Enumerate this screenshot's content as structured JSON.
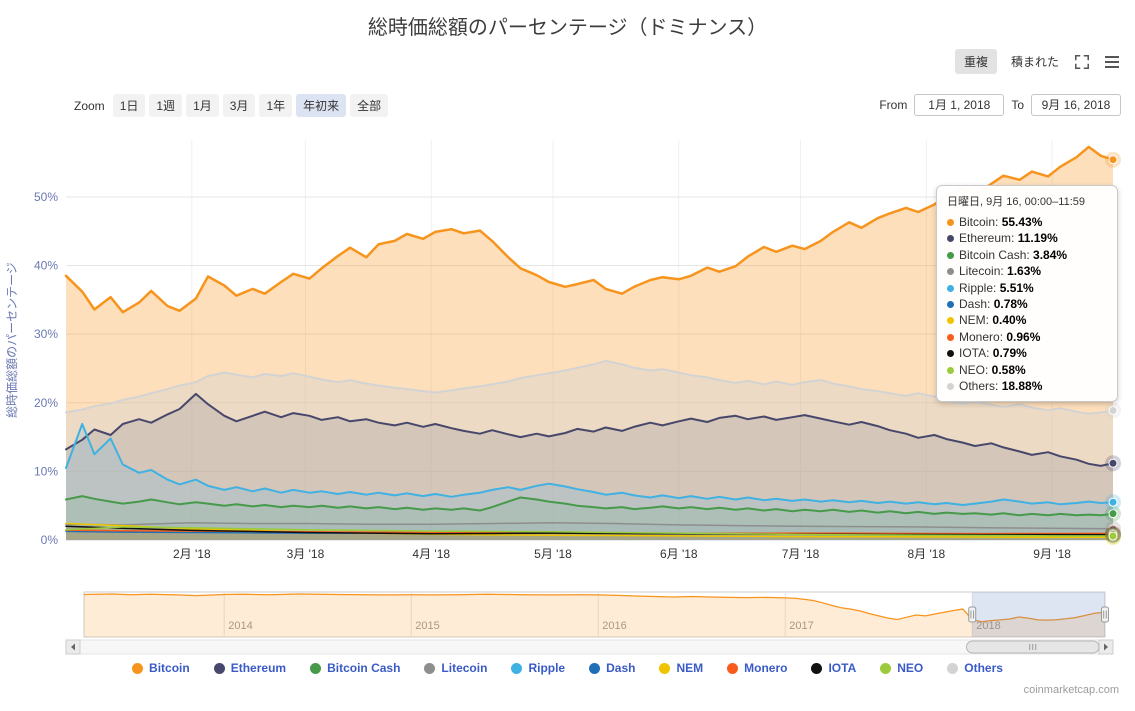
{
  "title": "総時価総額のパーセンテージ（ドミナンス）",
  "y_axis_title": "総時価総額のパーセンテージ",
  "footer": "coinmarketcap.com",
  "view_controls": {
    "overlap": "重複",
    "stacked": "積まれた"
  },
  "zoom": {
    "label": "Zoom",
    "buttons": [
      {
        "label": "1日",
        "selected": false
      },
      {
        "label": "1週",
        "selected": false
      },
      {
        "label": "1月",
        "selected": false
      },
      {
        "label": "3月",
        "selected": false
      },
      {
        "label": "1年",
        "selected": false
      },
      {
        "label": "年初来",
        "selected": true
      },
      {
        "label": "全部",
        "selected": false
      }
    ]
  },
  "range": {
    "from_label": "From",
    "from_value": "1月 1, 2018",
    "to_label": "To",
    "to_value": "9月 16, 2018"
  },
  "tooltip": {
    "title": "日曜日, 9月 16, 00:00–11:59",
    "items": [
      {
        "name": "Bitcoin",
        "value": "55.43%",
        "color": "#f7941d"
      },
      {
        "name": "Ethereum",
        "value": "11.19%",
        "color": "#47476b"
      },
      {
        "name": "Bitcoin Cash",
        "value": "3.84%",
        "color": "#469a4a"
      },
      {
        "name": "Litecoin",
        "value": "1.63%",
        "color": "#8e8e8e"
      },
      {
        "name": "Ripple",
        "value": "5.51%",
        "color": "#3fb1e3"
      },
      {
        "name": "Dash",
        "value": "0.78%",
        "color": "#1f6fb7"
      },
      {
        "name": "NEM",
        "value": "0.40%",
        "color": "#eec500"
      },
      {
        "name": "Monero",
        "value": "0.96%",
        "color": "#f75c1c"
      },
      {
        "name": "IOTA",
        "value": "0.79%",
        "color": "#111111"
      },
      {
        "name": "NEO",
        "value": "0.58%",
        "color": "#9bcb3c"
      },
      {
        "name": "Others",
        "value": "18.88%",
        "color": "#d3d3d3"
      }
    ]
  },
  "legend": {
    "items": [
      {
        "label": "Bitcoin",
        "color": "#f7941d"
      },
      {
        "label": "Ethereum",
        "color": "#47476b"
      },
      {
        "label": "Bitcoin Cash",
        "color": "#469a4a"
      },
      {
        "label": "Litecoin",
        "color": "#8e8e8e"
      },
      {
        "label": "Ripple",
        "color": "#3fb1e3"
      },
      {
        "label": "Dash",
        "color": "#1f6fb7"
      },
      {
        "label": "NEM",
        "color": "#eec500"
      },
      {
        "label": "Monero",
        "color": "#f75c1c"
      },
      {
        "label": "IOTA",
        "color": "#111111"
      },
      {
        "label": "NEO",
        "color": "#9bcb3c"
      },
      {
        "label": "Others",
        "color": "#d3d3d3"
      }
    ]
  },
  "chart_data": {
    "type": "area",
    "mode": "overlap",
    "title": "総時価総額のパーセンテージ（ドミナンス）",
    "ylabel": "総時価総額のパーセンテージ",
    "y_ticks": [
      0,
      10,
      20,
      30,
      40,
      50
    ],
    "ylim": [
      0,
      58.3
    ],
    "xlim_days": [
      0,
      258
    ],
    "x_ticks": [
      {
        "day": 31,
        "label": "2月 '18"
      },
      {
        "day": 59,
        "label": "3月 '18"
      },
      {
        "day": 90,
        "label": "4月 '18"
      },
      {
        "day": 120,
        "label": "5月 '18"
      },
      {
        "day": 151,
        "label": "6月 '18"
      },
      {
        "day": 181,
        "label": "7月 '18"
      },
      {
        "day": 212,
        "label": "8月 '18"
      },
      {
        "day": 243,
        "label": "9月 '18"
      }
    ],
    "x_main": [
      0,
      4,
      7,
      11,
      14,
      18,
      21,
      25,
      28,
      32,
      35,
      39,
      42,
      46,
      49,
      53,
      56,
      60,
      63,
      67,
      70,
      74,
      77,
      81,
      84,
      88,
      91,
      95,
      98,
      102,
      105,
      109,
      112,
      116,
      119,
      123,
      126,
      130,
      133,
      137,
      140,
      144,
      147,
      151,
      154,
      158,
      161,
      165,
      168,
      172,
      175,
      179,
      182,
      186,
      189,
      193,
      196,
      200,
      203,
      207,
      210,
      214,
      217,
      221,
      224,
      228,
      231,
      235,
      238,
      242,
      245,
      249,
      252,
      255,
      258
    ],
    "x_small": [
      0,
      14,
      31,
      45,
      59,
      74,
      90,
      105,
      120,
      135,
      151,
      166,
      181,
      196,
      212,
      227,
      243,
      258
    ],
    "series": [
      {
        "name": "Bitcoin",
        "color": "#f7941d",
        "grid": "main",
        "line_width": 2.5,
        "fill_opacity": 0.3,
        "y": [
          38.5,
          36.2,
          33.6,
          35.4,
          33.2,
          34.6,
          36.3,
          34.1,
          33.4,
          35.2,
          38.4,
          37.1,
          35.6,
          36.6,
          35.9,
          37.6,
          38.8,
          38.1,
          39.6,
          41.4,
          42.6,
          41.2,
          43.1,
          43.6,
          44.6,
          43.9,
          44.9,
          45.3,
          44.7,
          45.1,
          43.6,
          41.2,
          39.6,
          38.6,
          37.6,
          36.9,
          37.3,
          37.9,
          36.6,
          35.9,
          36.9,
          37.9,
          38.3,
          38.0,
          38.5,
          39.7,
          39.1,
          39.9,
          41.3,
          42.7,
          42.0,
          42.9,
          42.4,
          43.6,
          44.9,
          46.3,
          45.5,
          46.9,
          47.6,
          48.4,
          47.8,
          48.9,
          50.3,
          51.2,
          50.4,
          51.9,
          53.1,
          52.5,
          53.7,
          53.0,
          54.4,
          55.8,
          57.3,
          56.0,
          55.43
        ]
      },
      {
        "name": "Ethereum",
        "color": "#47476b",
        "grid": "main",
        "line_width": 2,
        "fill_opacity": 0.22,
        "y": [
          13.2,
          14.6,
          16.1,
          15.3,
          16.9,
          17.6,
          17.1,
          18.3,
          19.1,
          21.3,
          19.8,
          18.1,
          17.3,
          18.1,
          18.7,
          17.9,
          18.5,
          18.1,
          17.5,
          17.9,
          17.3,
          17.6,
          17.1,
          16.7,
          17.1,
          16.5,
          16.9,
          16.3,
          15.9,
          15.5,
          16.0,
          15.4,
          15.0,
          15.5,
          15.1,
          15.6,
          16.2,
          15.8,
          16.4,
          15.9,
          16.5,
          17.1,
          16.7,
          17.3,
          17.7,
          17.2,
          17.8,
          18.1,
          17.6,
          18.0,
          17.5,
          17.9,
          18.2,
          17.7,
          17.3,
          16.8,
          17.2,
          16.6,
          16.0,
          15.5,
          14.9,
          15.3,
          14.7,
          14.2,
          13.7,
          14.1,
          13.5,
          12.9,
          12.4,
          12.8,
          12.2,
          11.7,
          11.1,
          10.8,
          11.19
        ]
      },
      {
        "name": "Bitcoin Cash",
        "color": "#469a4a",
        "grid": "main",
        "line_width": 2,
        "fill_opacity": 0.25,
        "y": [
          5.9,
          6.4,
          6.0,
          5.6,
          5.3,
          5.6,
          5.9,
          5.5,
          5.2,
          5.5,
          5.3,
          5.0,
          5.2,
          4.9,
          5.1,
          4.8,
          5.0,
          4.8,
          5.0,
          4.7,
          4.9,
          4.6,
          4.8,
          4.5,
          4.7,
          4.4,
          4.6,
          4.4,
          4.6,
          4.3,
          4.8,
          5.6,
          6.2,
          5.9,
          5.6,
          5.3,
          5.0,
          4.8,
          4.6,
          4.8,
          4.5,
          4.7,
          4.9,
          4.6,
          4.8,
          4.5,
          4.7,
          4.4,
          4.6,
          4.3,
          4.5,
          4.2,
          4.4,
          4.2,
          4.4,
          4.1,
          4.3,
          4.0,
          4.2,
          3.9,
          4.1,
          3.8,
          4.0,
          3.8,
          3.9,
          3.7,
          3.9,
          3.6,
          3.8,
          3.6,
          3.8,
          3.6,
          3.7,
          3.6,
          3.84
        ]
      },
      {
        "name": "Litecoin",
        "color": "#8e8e8e",
        "grid": "small",
        "line_width": 1.5,
        "fill_opacity": 0.2,
        "y": [
          2.3,
          2.2,
          2.5,
          2.4,
          2.4,
          2.3,
          2.3,
          2.4,
          2.5,
          2.4,
          2.2,
          2.1,
          2.0,
          1.95,
          1.9,
          1.8,
          1.7,
          1.63
        ]
      },
      {
        "name": "Ripple",
        "color": "#3fb1e3",
        "grid": "main",
        "line_width": 2,
        "fill_opacity": 0.25,
        "y": [
          10.5,
          16.9,
          12.5,
          14.8,
          11.0,
          9.8,
          10.2,
          8.8,
          8.1,
          8.8,
          7.9,
          7.3,
          7.7,
          7.1,
          7.5,
          6.9,
          7.3,
          6.9,
          7.1,
          6.7,
          7.0,
          6.6,
          6.9,
          6.5,
          6.8,
          6.4,
          6.7,
          6.3,
          6.6,
          6.9,
          7.3,
          7.7,
          7.3,
          7.9,
          8.2,
          7.8,
          7.4,
          7.0,
          6.6,
          6.9,
          6.5,
          6.2,
          6.5,
          6.1,
          6.4,
          6.0,
          6.3,
          5.9,
          6.2,
          5.8,
          6.0,
          5.7,
          5.9,
          5.6,
          5.8,
          5.5,
          5.7,
          5.4,
          5.6,
          5.3,
          5.5,
          5.2,
          5.4,
          5.1,
          5.3,
          5.6,
          5.9,
          5.6,
          5.3,
          5.5,
          5.2,
          5.4,
          5.6,
          5.4,
          5.51
        ]
      },
      {
        "name": "Dash",
        "color": "#1f6fb7",
        "grid": "small",
        "line_width": 1.5,
        "fill_opacity": 0.2,
        "y": [
          1.25,
          1.15,
          1.1,
          1.05,
          1.0,
          1.0,
          1.0,
          1.05,
          1.1,
          1.0,
          0.95,
          0.92,
          0.9,
          0.88,
          0.85,
          0.82,
          0.8,
          0.78
        ]
      },
      {
        "name": "NEM",
        "color": "#eec500",
        "grid": "small",
        "line_width": 1.5,
        "fill_opacity": 0.2,
        "y": [
          2.4,
          2.1,
          1.6,
          1.4,
          1.2,
          1.0,
          0.85,
          0.75,
          0.7,
          0.65,
          0.6,
          0.55,
          0.5,
          0.48,
          0.45,
          0.42,
          0.4,
          0.4
        ]
      },
      {
        "name": "Monero",
        "color": "#f75c1c",
        "grid": "small",
        "line_width": 1.5,
        "fill_opacity": 0.2,
        "y": [
          1.45,
          1.35,
          1.3,
          1.25,
          1.2,
          1.15,
          1.1,
          1.05,
          1.0,
          0.98,
          0.95,
          0.98,
          1.0,
          0.97,
          0.95,
          0.93,
          0.95,
          0.96
        ]
      },
      {
        "name": "IOTA",
        "color": "#111111",
        "grid": "small",
        "line_width": 1.5,
        "fill_opacity": 0.2,
        "y": [
          2.0,
          1.7,
          1.4,
          1.25,
          1.1,
          1.0,
          0.9,
          0.95,
          1.0,
          0.95,
          0.9,
          0.88,
          0.85,
          0.82,
          0.8,
          0.78,
          0.78,
          0.79
        ]
      },
      {
        "name": "NEO",
        "color": "#9bcb3c",
        "grid": "small",
        "line_width": 1.5,
        "fill_opacity": 0.2,
        "y": [
          1.5,
          1.9,
          1.8,
          1.65,
          1.5,
          1.4,
          1.3,
          1.25,
          1.2,
          1.1,
          1.0,
          0.9,
          0.8,
          0.75,
          0.7,
          0.65,
          0.6,
          0.58
        ]
      },
      {
        "name": "Others",
        "color": "#d3d3d3",
        "grid": "main",
        "line_width": 2,
        "fill_opacity": 0.4,
        "y": [
          18.6,
          19.0,
          19.5,
          19.9,
          20.4,
          20.9,
          21.4,
          22.0,
          22.5,
          23.0,
          23.9,
          24.4,
          24.1,
          23.7,
          24.2,
          23.9,
          24.3,
          23.8,
          23.4,
          23.0,
          23.3,
          22.8,
          22.5,
          22.2,
          22.0,
          21.7,
          21.5,
          21.8,
          22.1,
          22.4,
          22.7,
          23.1,
          23.6,
          24.0,
          24.3,
          24.7,
          25.1,
          25.6,
          26.1,
          25.6,
          25.1,
          24.7,
          24.9,
          24.4,
          24.0,
          23.7,
          23.3,
          22.9,
          23.2,
          22.7,
          23.1,
          22.6,
          23.0,
          23.3,
          22.8,
          22.4,
          22.0,
          21.7,
          21.4,
          21.0,
          21.4,
          20.9,
          20.3,
          19.9,
          20.2,
          19.7,
          19.4,
          19.8,
          19.3,
          18.9,
          19.2,
          18.7,
          18.4,
          18.6,
          18.88
        ]
      }
    ],
    "navigator": {
      "color": "#f7941d",
      "xlim_years": [
        2013.25,
        2018.71
      ],
      "year_ticks": [
        2014,
        2015,
        2016,
        2017,
        2018
      ],
      "selected_range": [
        2018.0,
        2018.71
      ],
      "series": {
        "x": [
          2013.25,
          2013.4,
          2013.5,
          2013.6,
          2013.75,
          2013.85,
          2013.95,
          2014.0,
          2014.1,
          2014.25,
          2014.4,
          2014.5,
          2014.6,
          2014.75,
          2014.9,
          2015.0,
          2015.1,
          2015.25,
          2015.4,
          2015.5,
          2015.6,
          2015.75,
          2015.9,
          2016.0,
          2016.1,
          2016.2,
          2016.3,
          2016.4,
          2016.5,
          2016.6,
          2016.7,
          2016.8,
          2016.9,
          2017.0,
          2017.05,
          2017.1,
          2017.15,
          2017.2,
          2017.25,
          2017.3,
          2017.35,
          2017.4,
          2017.45,
          2017.5,
          2017.55,
          2017.6,
          2017.65,
          2017.7,
          2017.75,
          2017.8,
          2017.85,
          2017.9,
          2017.95,
          2018.0,
          2018.05,
          2018.1,
          2018.15,
          2018.2,
          2018.25,
          2018.3,
          2018.35,
          2018.4,
          2018.45,
          2018.5,
          2018.55,
          2018.6,
          2018.65,
          2018.71
        ],
        "y": [
          94.5,
          95.5,
          94.0,
          95.0,
          93.5,
          92.0,
          93.5,
          94.5,
          95.0,
          94.0,
          95.5,
          95.0,
          94.5,
          94.0,
          93.5,
          94.0,
          93.5,
          94.0,
          95.0,
          94.5,
          94.0,
          93.5,
          94.0,
          93.5,
          92.5,
          91.0,
          90.0,
          89.0,
          90.0,
          89.0,
          88.0,
          87.5,
          88.0,
          87.0,
          86.0,
          84.0,
          81.0,
          76.0,
          70.0,
          65.0,
          62.0,
          58.0,
          52.0,
          47.0,
          42.0,
          39.0,
          44.0,
          49.0,
          47.0,
          51.0,
          55.0,
          59.0,
          62.0,
          38.5,
          34.0,
          36.5,
          38.0,
          40.0,
          44.5,
          42.0,
          38.0,
          37.5,
          38.5,
          40.5,
          43.0,
          47.5,
          52.5,
          55.4
        ]
      }
    }
  }
}
